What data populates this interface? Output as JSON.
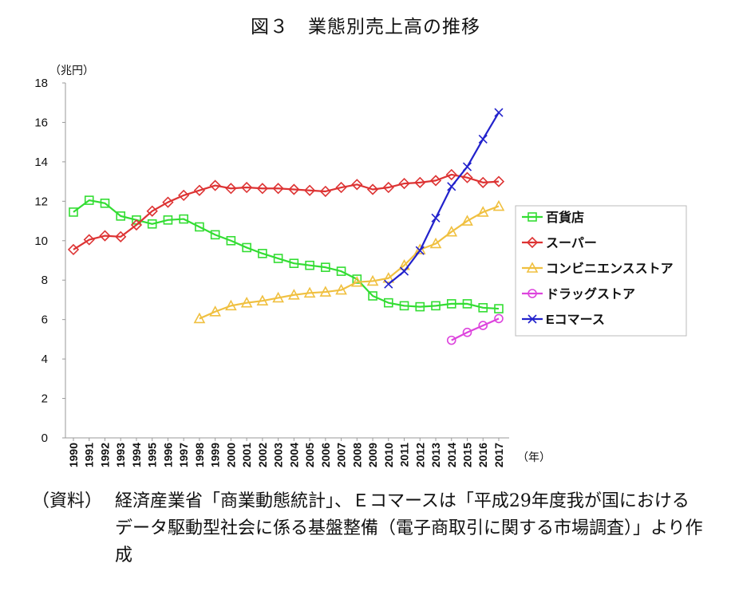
{
  "title": "図３　業態別売上高の推移",
  "source": {
    "label": "（資料）",
    "text": "経済産業省「商業動態統計」、Ｅコマースは「平成29年度我が国におけるデータ駆動型社会に係る基盤整備（電子商取引に関する市場調査）」より作成"
  },
  "chart_data": {
    "type": "line",
    "y_unit": "（兆円）",
    "x_unit": "（年）",
    "ylim": [
      0,
      18
    ],
    "yticks": [
      0,
      2,
      4,
      6,
      8,
      10,
      12,
      14,
      16,
      18
    ],
    "grid": false,
    "legend_position": "right",
    "categories": [
      "1990",
      "1991",
      "1992",
      "1993",
      "1994",
      "1995",
      "1996",
      "1997",
      "1998",
      "1999",
      "2000",
      "2001",
      "2002",
      "2003",
      "2004",
      "2005",
      "2006",
      "2007",
      "2008",
      "2009",
      "2010",
      "2011",
      "2012",
      "2013",
      "2014",
      "2015",
      "2016",
      "2017"
    ],
    "series": [
      {
        "name": "百貨店",
        "color": "#33dd33",
        "marker": "square",
        "values": [
          11.45,
          12.05,
          11.9,
          11.25,
          11.05,
          10.85,
          11.05,
          11.1,
          10.7,
          10.3,
          10.0,
          9.65,
          9.35,
          9.1,
          8.85,
          8.75,
          8.65,
          8.45,
          8.05,
          7.2,
          6.85,
          6.7,
          6.65,
          6.7,
          6.8,
          6.8,
          6.6,
          6.55
        ]
      },
      {
        "name": "スーパー",
        "color": "#dd3333",
        "marker": "diamond",
        "values": [
          9.55,
          10.05,
          10.25,
          10.2,
          10.8,
          11.5,
          11.95,
          12.3,
          12.55,
          12.8,
          12.65,
          12.7,
          12.65,
          12.65,
          12.6,
          12.55,
          12.5,
          12.7,
          12.85,
          12.6,
          12.7,
          12.9,
          12.95,
          13.05,
          13.35,
          13.2,
          12.95,
          13.0
        ]
      },
      {
        "name": "コンビニエンスストア",
        "color": "#f0c040",
        "marker": "triangle",
        "values": [
          null,
          null,
          null,
          null,
          null,
          null,
          null,
          null,
          6.05,
          6.4,
          6.7,
          6.85,
          6.95,
          7.1,
          7.25,
          7.35,
          7.4,
          7.5,
          7.9,
          7.95,
          8.1,
          8.75,
          9.55,
          9.85,
          10.45,
          11.0,
          11.45,
          11.75
        ]
      },
      {
        "name": "ドラッグストア",
        "color": "#dd44dd",
        "marker": "circle",
        "values": [
          null,
          null,
          null,
          null,
          null,
          null,
          null,
          null,
          null,
          null,
          null,
          null,
          null,
          null,
          null,
          null,
          null,
          null,
          null,
          null,
          null,
          null,
          null,
          null,
          4.95,
          5.35,
          5.7,
          6.05
        ]
      },
      {
        "name": "Eコマース",
        "color": "#2222cc",
        "marker": "x",
        "values": [
          null,
          null,
          null,
          null,
          null,
          null,
          null,
          null,
          null,
          null,
          null,
          null,
          null,
          null,
          null,
          null,
          null,
          null,
          null,
          null,
          7.8,
          8.45,
          9.5,
          11.15,
          12.75,
          13.75,
          15.15,
          16.5
        ]
      }
    ]
  }
}
